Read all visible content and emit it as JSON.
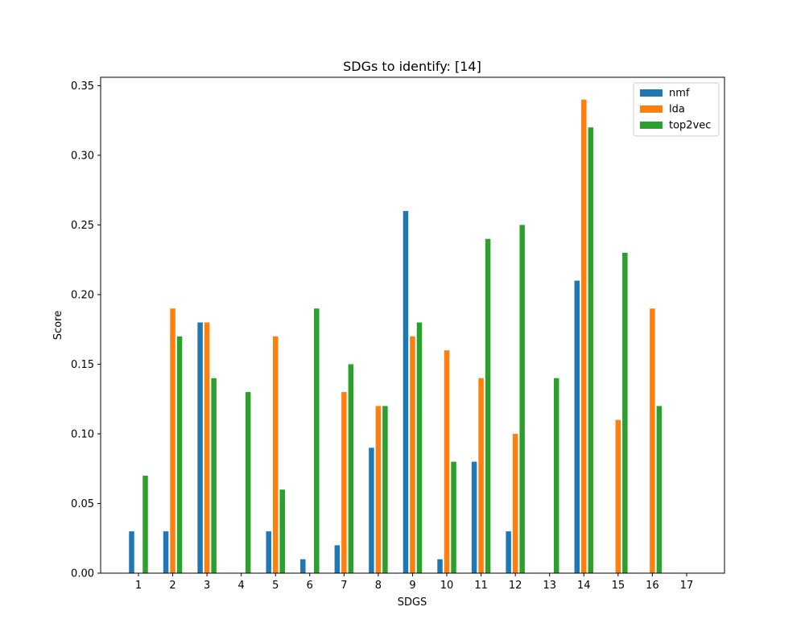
{
  "chart_data": {
    "type": "bar",
    "title": "SDGs to identify: [14]",
    "xlabel": "SDGS",
    "ylabel": "Score",
    "categories": [
      "1",
      "2",
      "3",
      "4",
      "5",
      "6",
      "7",
      "8",
      "9",
      "10",
      "11",
      "12",
      "13",
      "14",
      "15",
      "16",
      "17"
    ],
    "ylim": [
      0,
      0.356
    ],
    "yticks": [
      "0.00",
      "0.05",
      "0.10",
      "0.15",
      "0.20",
      "0.25",
      "0.30",
      "0.35"
    ],
    "legend_position": "top-right",
    "grid": false,
    "series": [
      {
        "name": "nmf",
        "color": "#1f77b4",
        "values": [
          0.03,
          0.03,
          0.18,
          0,
          0.03,
          0.01,
          0.02,
          0.09,
          0.26,
          0.01,
          0.08,
          0.03,
          0,
          0.21,
          0,
          0,
          0
        ]
      },
      {
        "name": "lda",
        "color": "#ff7f0e",
        "values": [
          0,
          0.19,
          0.18,
          0,
          0.17,
          0,
          0.13,
          0.12,
          0.17,
          0.16,
          0.14,
          0.1,
          0,
          0.34,
          0.11,
          0.19,
          0
        ]
      },
      {
        "name": "top2vec",
        "color": "#2ca02c",
        "values": [
          0.07,
          0.17,
          0.14,
          0.13,
          0.06,
          0.19,
          0.15,
          0.12,
          0.18,
          0.08,
          0.24,
          0.25,
          0.14,
          0.32,
          0.23,
          0.12,
          0
        ]
      }
    ]
  }
}
